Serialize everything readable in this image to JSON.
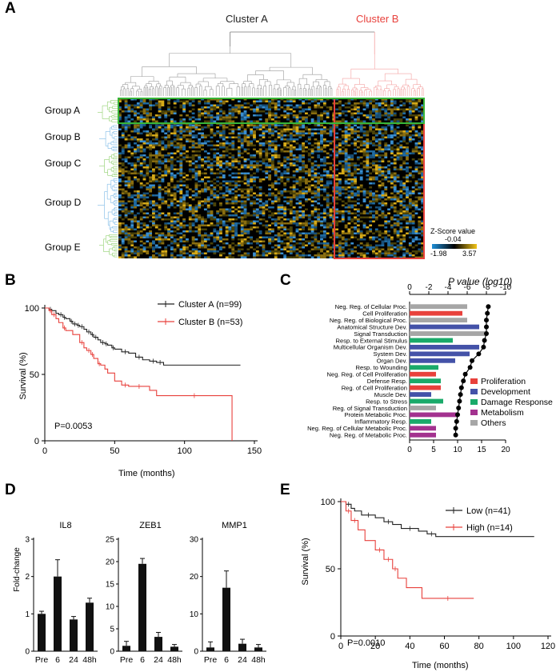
{
  "panel_labels": [
    "A",
    "B",
    "C",
    "D",
    "E"
  ],
  "chart_data": [
    {
      "panel": "A",
      "type": "heatmap",
      "clusters": [
        {
          "name": "Cluster A",
          "color": "#333333"
        },
        {
          "name": "Cluster B",
          "color": "#e8413c"
        }
      ],
      "groups": [
        "Group A",
        "Group B",
        "Group C",
        "Group D",
        "Group E"
      ],
      "colorbar": {
        "title": "Z-Score value",
        "mid_label": "-0.04",
        "min_label": "-1.98",
        "max_label": "3.57",
        "colors": [
          "#1f8fd8",
          "#000000",
          "#f2c418"
        ]
      }
    },
    {
      "panel": "B",
      "type": "line",
      "xlabel": "Time (months)",
      "ylabel": "Survival (%)",
      "xlim": [
        0,
        150
      ],
      "ylim": [
        0,
        100
      ],
      "xticks": [
        "0",
        "50",
        "100",
        "150"
      ],
      "yticks": [
        "0",
        "50",
        "100"
      ],
      "pvalue": "P=0.0053",
      "series": [
        {
          "name": "Cluster A (n=99)",
          "color": "#222222",
          "x": [
            0,
            3,
            5,
            8,
            10,
            13,
            15,
            18,
            20,
            23,
            25,
            28,
            30,
            33,
            35,
            38,
            40,
            43,
            45,
            48,
            50,
            55,
            60,
            65,
            70,
            75,
            80,
            85,
            140
          ],
          "y": [
            100,
            99,
            98,
            96,
            95,
            93,
            92,
            90,
            88,
            87,
            86,
            84,
            82,
            80,
            78,
            76,
            74,
            73,
            72,
            70,
            69,
            67,
            66,
            63,
            61,
            60,
            59,
            57,
            57
          ]
        },
        {
          "name": "Cluster B (n=53)",
          "color": "#e8413c",
          "x": [
            0,
            3,
            5,
            8,
            10,
            13,
            15,
            20,
            25,
            28,
            30,
            33,
            35,
            38,
            40,
            43,
            45,
            50,
            55,
            60,
            75,
            80,
            134,
            134
          ],
          "y": [
            100,
            98,
            95,
            92,
            89,
            85,
            83,
            80,
            74,
            70,
            68,
            65,
            62,
            58,
            57,
            54,
            51,
            45,
            42,
            41,
            38,
            34,
            34,
            0
          ]
        }
      ]
    },
    {
      "panel": "C",
      "type": "bar",
      "title": "P value (log10)",
      "top_ticks": [
        "0",
        "-2",
        "-4",
        "-6",
        "-8",
        "-10"
      ],
      "bottom_ticks": [
        "0",
        "5",
        "10",
        "15",
        "20"
      ],
      "categories": [
        "Neg. Reg. of Cellular Proc.",
        "Cell Proliferation",
        "Neg. Reg. of Biological Proc.",
        "Anatomical Structure Dev.",
        "Signal Transduction",
        "Resp. to External Stimulus",
        "Multicellular Organism Dev.",
        "System Dev.",
        "Organ Dev.",
        "Resp. to Wounding",
        "Neg. Reg. of Cell Proliferation",
        "Defense Resp.",
        "Reg. of Cell Proliferation",
        "Muscle Dev.",
        "Resp. to Stress",
        "Reg. of Signal Transduction",
        "Protein Metabolic Proc.",
        "Inflammatory Resp.",
        "Neg. Reg. of Cellular Metabolic Proc.",
        "Neg. Reg. of Metabolic Proc."
      ],
      "values": [
        12,
        11,
        12,
        14.5,
        16,
        9,
        14.5,
        12.5,
        9.5,
        6,
        5.5,
        6.5,
        6.5,
        4.5,
        7,
        5.5,
        10,
        4.5,
        5.5,
        5.5
      ],
      "pvalues_log10": [
        -8.2,
        -8.1,
        -8.0,
        -8.0,
        -8.0,
        -7.8,
        -7.7,
        -7.2,
        -6.5,
        -6.3,
        -5.8,
        -5.6,
        -5.4,
        -5.3,
        -5.2,
        -5.1,
        -5.0,
        -4.9,
        -4.8,
        -4.8
      ],
      "bar_categories": [
        "Others",
        "Proliferation",
        "Others",
        "Development",
        "Others",
        "Damage Response",
        "Development",
        "Development",
        "Development",
        "Damage Response",
        "Proliferation",
        "Damage Response",
        "Proliferation",
        "Development",
        "Damage Response",
        "Others",
        "Metabolism",
        "Damage Response",
        "Metabolism",
        "Metabolism"
      ],
      "legend": [
        {
          "name": "Proliferation",
          "color": "#e8413c"
        },
        {
          "name": "Development",
          "color": "#4452a8"
        },
        {
          "name": "Damage Response",
          "color": "#1aaa6a"
        },
        {
          "name": "Metabolism",
          "color": "#a3328f"
        },
        {
          "name": "Others",
          "color": "#a6a6a6"
        }
      ]
    },
    {
      "panel": "D",
      "type": "bar",
      "ylabel": "Fold-change",
      "categories": [
        "Pre",
        "6",
        "24",
        "48h"
      ],
      "subplots": [
        {
          "title": "IL8",
          "ylim": [
            0,
            3
          ],
          "yticks": [
            "0",
            "1",
            "2",
            "3"
          ],
          "values": [
            1.0,
            2.0,
            0.85,
            1.3
          ],
          "errors": [
            0.07,
            0.45,
            0.08,
            0.12
          ]
        },
        {
          "title": "ZEB1",
          "ylim": [
            0,
            25
          ],
          "yticks": [
            "0",
            "5",
            "10",
            "15",
            "20",
            "25"
          ],
          "values": [
            1.2,
            19.5,
            3.2,
            1.0
          ],
          "errors": [
            1.0,
            1.2,
            1.0,
            0.5
          ]
        },
        {
          "title": "MMP1",
          "ylim": [
            0,
            30
          ],
          "yticks": [
            "0",
            "10",
            "20",
            "30"
          ],
          "values": [
            1.0,
            17,
            2.0,
            1.0
          ],
          "errors": [
            1.5,
            4.5,
            1.2,
            0.8
          ]
        }
      ]
    },
    {
      "panel": "E",
      "type": "line",
      "xlabel": "Time (months)",
      "ylabel": "Survival (%)",
      "xlim": [
        0,
        120
      ],
      "ylim": [
        0,
        100
      ],
      "xticks": [
        "0",
        "20",
        "40",
        "60",
        "80",
        "100",
        "120"
      ],
      "yticks": [
        "0",
        "50",
        "100"
      ],
      "pvalue": "P=0.0010",
      "series": [
        {
          "name": "Low (n=41)",
          "color": "#222222",
          "x": [
            0,
            3,
            6,
            8,
            12,
            20,
            25,
            30,
            35,
            45,
            50,
            55,
            112
          ],
          "y": [
            100,
            98,
            95,
            93,
            90,
            88,
            85,
            83,
            80,
            78,
            76,
            74,
            74
          ]
        },
        {
          "name": "High (n=14)",
          "color": "#e8413c",
          "x": [
            0,
            3,
            6,
            10,
            14,
            20,
            25,
            30,
            33,
            38,
            47,
            77
          ],
          "y": [
            100,
            93,
            86,
            79,
            71,
            64,
            57,
            50,
            43,
            36,
            28,
            28
          ]
        }
      ]
    }
  ]
}
